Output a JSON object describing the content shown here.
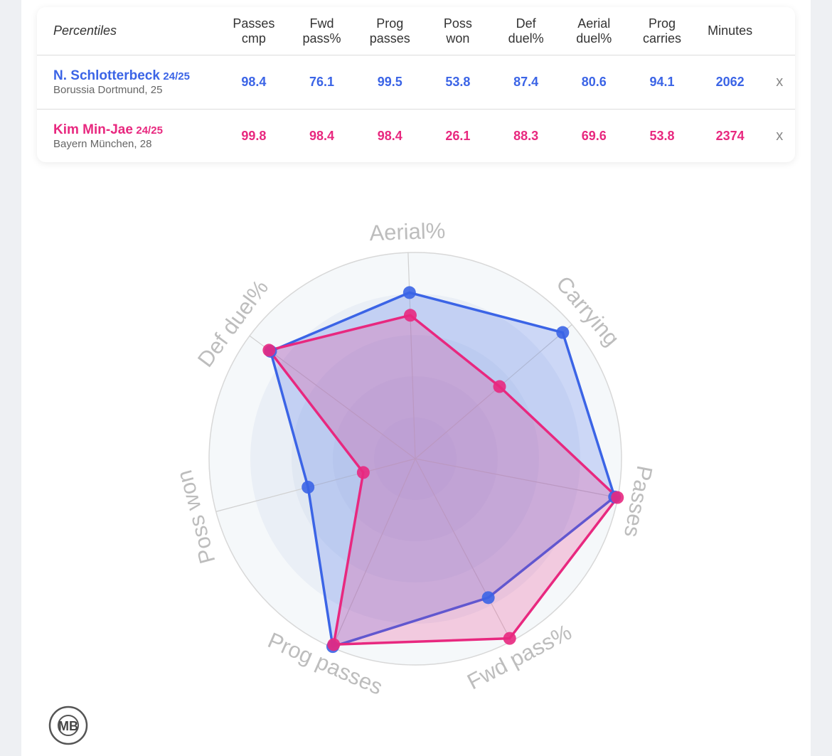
{
  "table": {
    "header": [
      "Percentiles",
      "Passes cmp",
      "Fwd pass%",
      "Prog passes",
      "Poss won",
      "Def duel%",
      "Aerial duel%",
      "Prog carries",
      "Minutes"
    ],
    "rows": [
      {
        "season": "24/25",
        "club": "Borussia Dortmund, 25",
        "values": [
          98.4,
          76.1,
          99.5,
          53.8,
          87.4,
          80.6,
          94.1,
          2062
        ],
        "remove": "x"
      },
      {
        "season": "24/25",
        "club": "Bayern München, 28",
        "values": [
          99.8,
          98.4,
          98.4,
          26.1,
          88.3,
          69.6,
          53.8,
          2374
        ],
        "remove": "x"
      }
    ]
  },
  "chart_data": {
    "type": "radar",
    "categories": [
      "Aerial%",
      "Carrying",
      "Passes",
      "Fwd pass%",
      "Prog passes",
      "Poss won",
      "Def duel%"
    ],
    "series": [
      {
        "name": "N. Schlotterbeck",
        "color": "#3b64e6",
        "values": [
          80.6,
          94.1,
          98.4,
          76.1,
          99.5,
          53.8,
          87.4
        ]
      },
      {
        "name": "Kim Min-Jae",
        "color": "#e8287f",
        "values": [
          69.6,
          53.8,
          99.8,
          98.4,
          98.4,
          26.1,
          88.3
        ]
      }
    ],
    "rlim": [
      0,
      100
    ],
    "rticks": [
      20,
      40,
      60,
      80,
      100
    ]
  },
  "logo": {
    "text": "MB"
  }
}
